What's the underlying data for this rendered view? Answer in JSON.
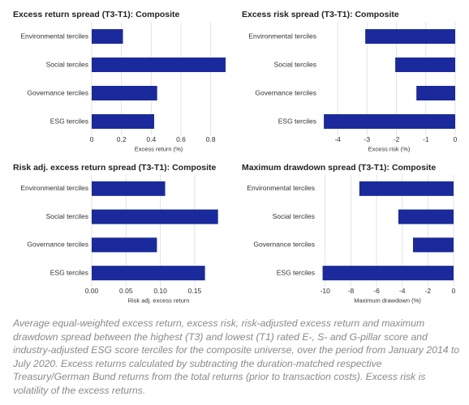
{
  "chart_data": [
    {
      "type": "bar",
      "orientation": "horizontal",
      "title": "Excess return spread (T3-T1): Composite",
      "categories": [
        "Environmental terciles",
        "Social terciles",
        "Governance terciles",
        "ESG terciles"
      ],
      "values": [
        0.21,
        0.9,
        0.44,
        0.42
      ],
      "color": "#1a2a9c",
      "xlabel": "Excess return (%)",
      "xlim": [
        0,
        0.9
      ],
      "xticks": [
        0.0,
        0.2,
        0.4,
        0.6,
        0.8
      ],
      "grid": true
    },
    {
      "type": "bar",
      "orientation": "horizontal",
      "title": "Excess risk spread (T3-T1): Composite",
      "categories": [
        "Environmental terciles",
        "Social terciles",
        "Governance terciles",
        "ESG terciles"
      ],
      "values": [
        -3.06,
        -2.04,
        -1.32,
        -4.47
      ],
      "color": "#1a2a9c",
      "xlabel": "Excess risk (%)",
      "xlim": [
        -4.5,
        0
      ],
      "xticks": [
        -4,
        -3,
        -2,
        -1,
        0
      ],
      "grid": true
    },
    {
      "type": "bar",
      "orientation": "horizontal",
      "title": "Risk adj. excess return spread (T3-T1): Composite",
      "categories": [
        "Environmental terciles",
        "Social terciles",
        "Governance terciles",
        "ESG terciles"
      ],
      "values": [
        0.107,
        0.184,
        0.095,
        0.165
      ],
      "color": "#1a2a9c",
      "xlabel": "Risk adj. excess return",
      "xlim": [
        0,
        0.195
      ],
      "xticks": [
        {
          "value": 0,
          "label": "0.00"
        },
        {
          "value": 0.05,
          "label": "0.05"
        },
        {
          "value": 0.1,
          "label": "0.10"
        },
        {
          "value": 0.15,
          "label": "0.15"
        }
      ],
      "grid": true
    },
    {
      "type": "bar",
      "orientation": "horizontal",
      "title": "Maximum drawdown spread (T3-T1): Composite",
      "categories": [
        "Environmental terciles",
        "Social terciles",
        "Governance terciles",
        "ESG terciles"
      ],
      "values": [
        -7.34,
        -4.3,
        -3.16,
        -10.2
      ],
      "color": "#1a2a9c",
      "xlabel": "Maximum drawdown (%)",
      "xlim": [
        -10.3,
        0
      ],
      "xticks": [
        -10,
        -8,
        -6,
        -4,
        -2,
        0
      ],
      "grid": true
    }
  ],
  "caption": "Average equal-weighted excess return, excess risk, risk-adjusted excess return and maximum drawdown spread between the highest (T3) and lowest (T1) rated E-, S- and G-pillar score and industry-adjusted ESG score terciles for the composite universe, over the period from January 2014 to July 2020. Excess returns calculated by subtracting the duration-matched respective Treasury/German Bund returns from the total returns (prior to transaction costs). Excess risk is volatility of the excess returns."
}
